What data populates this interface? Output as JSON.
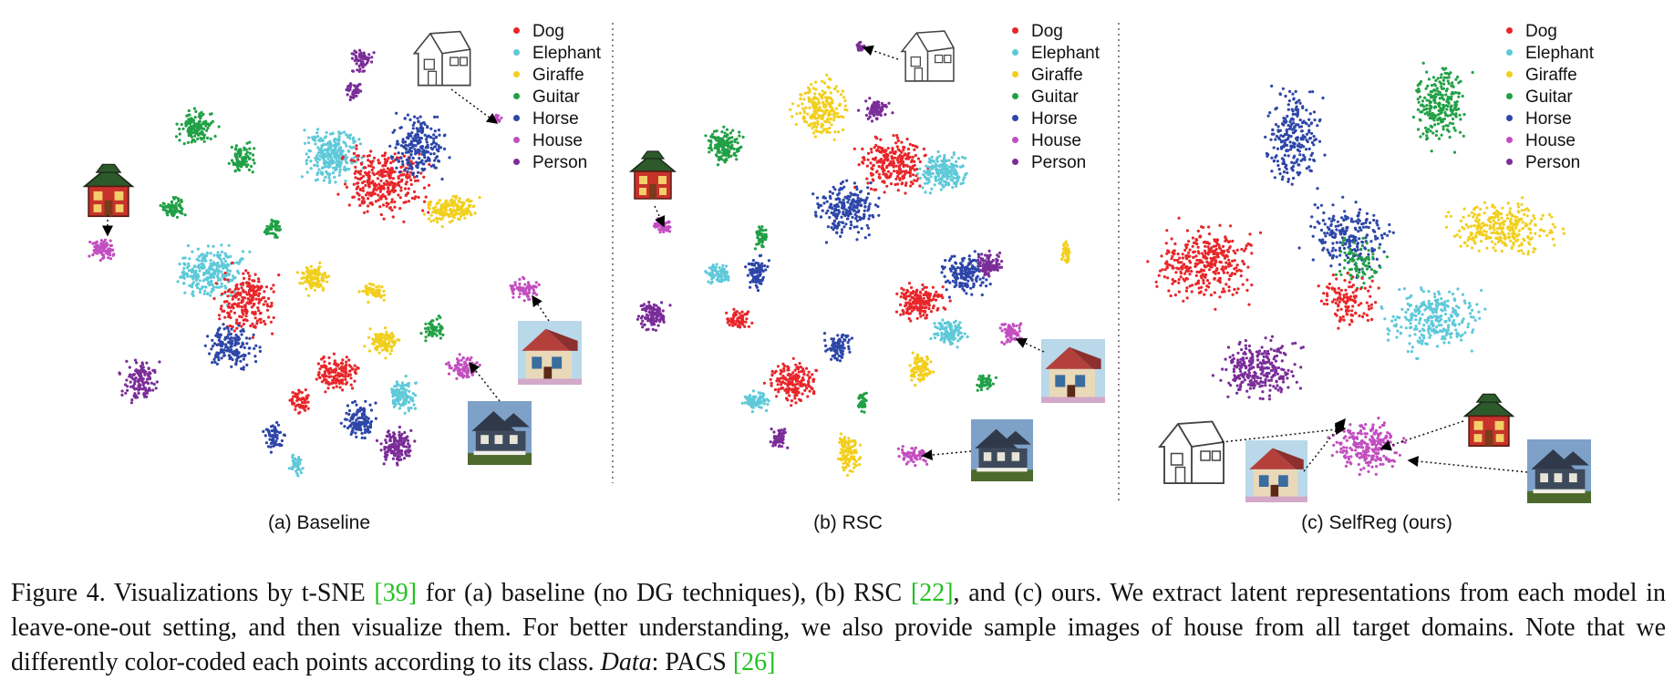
{
  "legend": {
    "classes": [
      {
        "name": "Dog",
        "color": "#e8262a"
      },
      {
        "name": "Elephant",
        "color": "#5ec9d9"
      },
      {
        "name": "Giraffe",
        "color": "#f2cf1e"
      },
      {
        "name": "Guitar",
        "color": "#21a046"
      },
      {
        "name": "Horse",
        "color": "#2d46a8"
      },
      {
        "name": "House",
        "color": "#c24ec0"
      },
      {
        "name": "Person",
        "color": "#7a2d98"
      }
    ]
  },
  "panels": [
    {
      "id": "a",
      "caption": "(a) Baseline"
    },
    {
      "id": "b",
      "caption": "(b) RSC"
    },
    {
      "id": "c",
      "caption": "(c) SelfReg (ours)"
    }
  ],
  "caption": {
    "label": "Figure 4.",
    "text1": " Visualizations by t-SNE ",
    "ref1": "[39]",
    "text2": " for (a) baseline (no DG techniques), (b) RSC ",
    "ref2": "[22]",
    "text3": ", and (c) ours. We extract latent representations from each model in leave-one-out setting, and then visualize them. For better understanding, we also provide sample images of house from all target domains. Note that we differently color-coded each points according to its class. ",
    "data_label": "Data",
    "text4": ": PACS ",
    "ref3": "[26]"
  }
}
